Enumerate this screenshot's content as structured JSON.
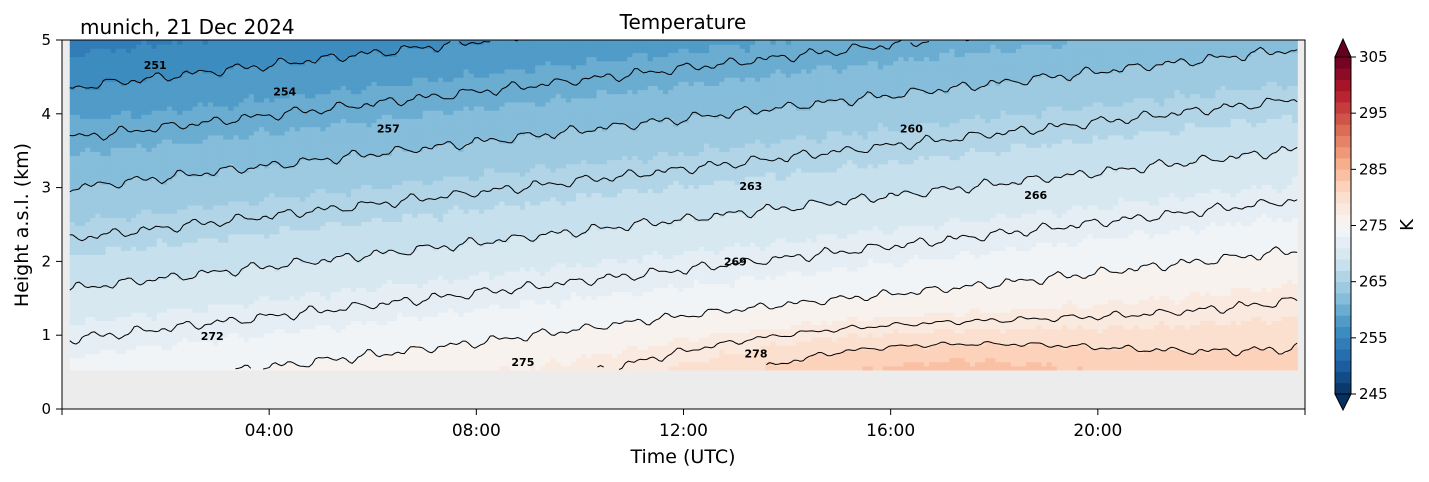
{
  "header": {
    "location_date": "munich, 21 Dec 2024",
    "title": "Temperature"
  },
  "chart_data": {
    "type": "heatmap",
    "title": "Temperature",
    "subtitle": "munich, 21 Dec 2024",
    "xlabel": "Time (UTC)",
    "ylabel": "Height a.s.l. (km)",
    "x_ticks": [
      "04:00",
      "08:00",
      "12:00",
      "16:00",
      "20:00"
    ],
    "x_tick_hours": [
      4,
      8,
      12,
      16,
      20
    ],
    "xlim_hours": [
      0,
      24
    ],
    "y_ticks": [
      "0",
      "1",
      "2",
      "3",
      "4",
      "5"
    ],
    "ylim_km": [
      0,
      5
    ],
    "colorbar": {
      "label": "K",
      "ticks": [
        "245",
        "255",
        "265",
        "275",
        "285",
        "295",
        "305"
      ],
      "range_K": [
        245,
        305
      ],
      "levels_step": 2,
      "colormap": "RdBu_r",
      "extend": "both"
    },
    "contour_labels": [
      {
        "text": "251",
        "value": 251,
        "hour": 1.8,
        "height": 4.66
      },
      {
        "text": "254",
        "value": 254,
        "hour": 4.3,
        "height": 4.3
      },
      {
        "text": "257",
        "value": 257,
        "hour": 6.3,
        "height": 3.8
      },
      {
        "text": "260",
        "value": 260,
        "hour": 16.4,
        "height": 3.8
      },
      {
        "text": "263",
        "value": 263,
        "hour": 13.3,
        "height": 3.02
      },
      {
        "text": "266",
        "value": 266,
        "hour": 18.8,
        "height": 2.9
      },
      {
        "text": "269",
        "value": 269,
        "hour": 13.0,
        "height": 2.0
      },
      {
        "text": "272",
        "value": 272,
        "hour": 2.9,
        "height": 0.99
      },
      {
        "text": "275",
        "value": 275,
        "hour": 8.9,
        "height": 0.64
      },
      {
        "text": "278",
        "value": 278,
        "hour": 13.4,
        "height": 0.75
      }
    ],
    "surface_height_km": 0.53,
    "missing_color": "#ececec"
  }
}
